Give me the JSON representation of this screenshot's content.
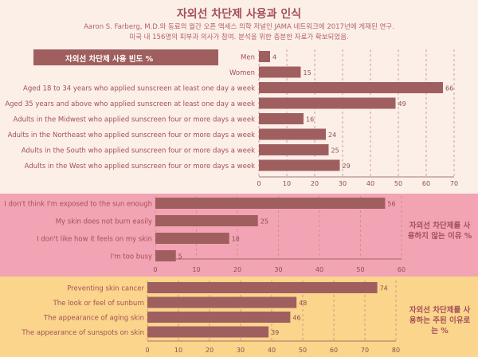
{
  "header": {
    "title": "자외선 차단제 사용과 인식",
    "subtitle_1": "Aaron S. Farberg, M.D.와 동료의 월간 오픈 액세스 의학 저널인 JAMA 네트워크에 2017년에 게재된 연구.",
    "subtitle_2": "미국 내 156명의 피부과 의사가 참여. 분석을 위한 충분한 자료가 확보되었음."
  },
  "colors": {
    "bar": "#a05f5f",
    "text": "#a4505a",
    "bg1": "#fbefe8",
    "bg2": "#f2a3b4",
    "bg3": "#fad58b"
  },
  "chart_data": [
    {
      "type": "bar",
      "title": "자외선 차단제 사용 빈도 %",
      "categories": [
        "Men",
        "Women",
        "Aged 18 to 34 years who applied sunscreen at least one day a week",
        "Aged 35 years and above who applied sunscreen at least one day a week",
        "Adults in the Midwest who applied sunscreen four or more days a week",
        "Adults in the Northeast who applied sunscreen four or more days a week",
        "Adults in the South who applied sunscreen four or more days a week",
        "Adults in the West who applied sunscreen four or more days a week"
      ],
      "values": [
        4,
        15,
        66,
        49,
        16,
        24,
        25,
        29
      ],
      "xlim": [
        0,
        70
      ],
      "ticks": [
        0,
        10,
        20,
        30,
        40,
        50,
        60,
        70
      ]
    },
    {
      "type": "bar",
      "title": "자외선 차단제를 사용하지 않는 이유 %",
      "categories": [
        "I don't think I'm exposed to the sun enough",
        "My skin does not burn easily",
        "I don't like how it feels on my skin",
        "I'm too busy"
      ],
      "values": [
        56,
        25,
        18,
        5
      ],
      "xlim": [
        0,
        60
      ],
      "ticks": [
        0,
        10,
        20,
        30,
        40,
        50,
        60
      ]
    },
    {
      "type": "bar",
      "title": "자외선 차단제를 사용하는 주된 이유로는 %",
      "categories": [
        "Preventing skin cancer",
        "The look or feel of sunburn",
        "The appearance of aging skin",
        "The appearance of sunspots on skin"
      ],
      "values": [
        74,
        48,
        46,
        39
      ],
      "xlim": [
        0,
        80
      ],
      "ticks": [
        0,
        10,
        20,
        30,
        40,
        50,
        60,
        70,
        80
      ]
    }
  ]
}
